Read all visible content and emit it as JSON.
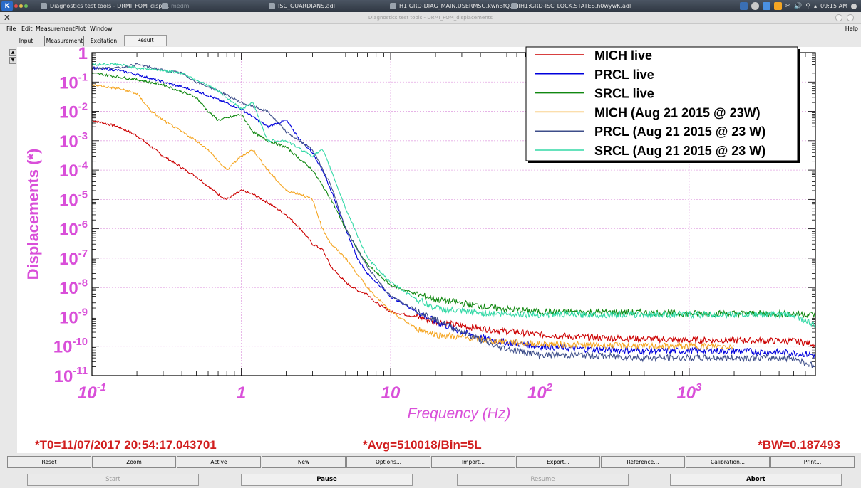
{
  "taskbar": {
    "launcher": "K",
    "tasks": [
      "Diagnostics test tools - DRMI_FOM_displ...",
      "medm",
      "ISC_GUARDIANS.adl",
      "H1:GRD-DIAG_MAIN.USERMSG.kwnBfQ.adl",
      "H1:GRD-ISC_LOCK.STATES.h0wywK.adl"
    ],
    "clock": "09:15 AM"
  },
  "window": {
    "title": "Diagnostics test tools - DRMI_FOM_displacements",
    "close": "X"
  },
  "menu": {
    "file": "File",
    "edit": "Edit",
    "measurement": "Measurement",
    "plot": "Plot",
    "window": "Window",
    "help": "Help"
  },
  "tabs": {
    "input": "Input",
    "measurement": "Measurement",
    "excitation": "Excitation",
    "result": "Result"
  },
  "spinner": {
    "up": "▲",
    "down": "▼"
  },
  "status": {
    "t0": "*T0=11/07/2017 20:54:17.043701",
    "avg": "*Avg=510018/Bin=5L",
    "bw": "*BW=0.187493"
  },
  "colors": {
    "axis": "#d94fd9",
    "status": "#d11e1e",
    "grid": "#e3a8e3"
  },
  "buttons_row1": [
    "Reset",
    "Zoom",
    "Active",
    "New",
    "Options...",
    "Import...",
    "Export...",
    "Reference...",
    "Calibration...",
    "Print..."
  ],
  "buttons_row2": {
    "start": "Start",
    "pause": "Pause",
    "resume": "Resume",
    "abort": "Abort"
  },
  "chart_data": {
    "type": "line",
    "xlabel": "Frequency (Hz)",
    "ylabel": "Displacements (*)",
    "xscale": "log",
    "yscale": "log",
    "xlim": [
      0.1,
      7000
    ],
    "ylim": [
      1e-11,
      1
    ],
    "grid": true,
    "legend_position": "top-right",
    "x_ticks": [
      {
        "b": "10",
        "e": "-1"
      },
      {
        "b": "1",
        "e": ""
      },
      {
        "b": "10",
        "e": ""
      },
      {
        "b": "10",
        "e": "2"
      },
      {
        "b": "10",
        "e": "3"
      }
    ],
    "y_ticks": [
      {
        "b": "1",
        "e": ""
      },
      {
        "b": "10",
        "e": "-1"
      },
      {
        "b": "10",
        "e": "-2"
      },
      {
        "b": "10",
        "e": "-3"
      },
      {
        "b": "10",
        "e": "-4"
      },
      {
        "b": "10",
        "e": "-5"
      },
      {
        "b": "10",
        "e": "-6"
      },
      {
        "b": "10",
        "e": "-7"
      },
      {
        "b": "10",
        "e": "-8"
      },
      {
        "b": "10",
        "e": "-9"
      },
      {
        "b": "10",
        "e": "-10"
      },
      {
        "b": "10",
        "e": "-11"
      }
    ],
    "series": [
      {
        "name": "MICH live",
        "color": "#cc0000",
        "x": [
          0.1,
          0.15,
          0.2,
          0.3,
          0.5,
          0.7,
          0.8,
          1.0,
          1.2,
          1.5,
          2.0,
          2.5,
          3.0,
          3.5,
          4.0,
          5.0,
          6.0,
          7.0,
          8.0,
          10,
          15,
          20,
          30,
          50,
          100,
          200,
          500,
          1000,
          2000,
          5000,
          7000
        ],
        "y": [
          0.005,
          0.003,
          0.0015,
          0.0003,
          6e-05,
          1.5e-05,
          1e-05,
          2e-05,
          1.5e-05,
          8e-06,
          3e-06,
          1e-06,
          3e-07,
          2e-07,
          5e-08,
          1.5e-08,
          8e-09,
          6e-09,
          3e-09,
          1.5e-09,
          1e-09,
          7e-10,
          5e-10,
          3.5e-10,
          2.5e-10,
          2e-10,
          1.8e-10,
          1.6e-10,
          1.6e-10,
          1.5e-10,
          1.2e-10
        ]
      },
      {
        "name": "PRCL live",
        "color": "#0000dd",
        "x": [
          0.1,
          0.15,
          0.2,
          0.3,
          0.5,
          0.7,
          1.0,
          1.5,
          2.0,
          2.5,
          3.0,
          3.5,
          4.0,
          5.0,
          6.0,
          7.0,
          10,
          15,
          20,
          30,
          50,
          100,
          200,
          500,
          1000,
          2000,
          5000,
          7000
        ],
        "y": [
          0.3,
          0.25,
          0.18,
          0.1,
          0.05,
          0.025,
          0.012,
          0.003,
          0.005,
          0.001,
          0.0004,
          0.0001,
          2e-05,
          1e-06,
          1e-07,
          3e-08,
          5e-09,
          1.5e-09,
          7e-10,
          3e-10,
          1.5e-10,
          1e-10,
          8e-11,
          7e-11,
          7e-11,
          7e-11,
          6e-11,
          5e-11
        ]
      },
      {
        "name": "SRCL live",
        "color": "#118811",
        "x": [
          0.1,
          0.15,
          0.2,
          0.3,
          0.5,
          0.6,
          0.7,
          1.0,
          1.2,
          1.5,
          2.0,
          3.0,
          4.0,
          5.0,
          6.0,
          7.0,
          10,
          15,
          20,
          50,
          100,
          500,
          1000,
          5000,
          7000
        ],
        "y": [
          0.2,
          0.15,
          0.12,
          0.08,
          0.03,
          0.01,
          0.005,
          0.008,
          0.002,
          0.001,
          0.0006,
          0.0001,
          1e-05,
          1e-06,
          2e-07,
          6e-08,
          1.2e-08,
          6e-09,
          4e-09,
          2e-09,
          1.5e-09,
          1.4e-09,
          1.3e-09,
          1.3e-09,
          1.2e-09
        ]
      },
      {
        "name": "MICH (Aug 21 2015 @ 23W)",
        "color": "#f5a623",
        "x": [
          0.1,
          0.15,
          0.2,
          0.25,
          0.3,
          0.5,
          0.6,
          0.7,
          0.8,
          1.0,
          1.2,
          1.5,
          2.0,
          2.5,
          3.0,
          3.5,
          4.0,
          5.0,
          7.0,
          10,
          15,
          20,
          30,
          50,
          100,
          200,
          500,
          1000,
          2000
        ],
        "y": [
          0.08,
          0.06,
          0.04,
          0.01,
          0.005,
          0.001,
          0.0005,
          0.0002,
          0.0001,
          0.0003,
          0.0005,
          0.0001,
          2e-05,
          1.5e-05,
          1e-05,
          1e-06,
          3e-07,
          1e-07,
          1e-08,
          1.5e-09,
          4e-10,
          2.5e-10,
          2e-10,
          1.5e-10,
          1.2e-10,
          1.1e-10,
          1e-10,
          1e-10,
          1e-10
        ]
      },
      {
        "name": "PRCL (Aug 21 2015 @ 23 W)",
        "color": "#3e4e8a",
        "x": [
          0.1,
          0.15,
          0.2,
          0.3,
          0.4,
          0.5,
          0.7,
          1.0,
          1.5,
          2.0,
          3.0,
          4.0,
          5.0,
          7.0,
          10,
          20,
          50,
          100,
          200,
          500,
          1000,
          2000,
          5000,
          7000
        ],
        "y": [
          0.3,
          0.3,
          0.4,
          0.25,
          0.2,
          0.1,
          0.05,
          0.02,
          0.01,
          0.002,
          0.0005,
          3e-05,
          1e-06,
          5e-08,
          5e-09,
          8e-10,
          1e-10,
          5e-11,
          5e-11,
          4e-11,
          4e-11,
          4e-11,
          4e-11,
          2e-11
        ]
      },
      {
        "name": "SRCL (Aug 21 2015 @ 23 W)",
        "color": "#33d9a6",
        "x": [
          0.1,
          0.15,
          0.2,
          0.3,
          0.4,
          0.5,
          0.7,
          1.0,
          1.2,
          1.5,
          2.0,
          3.0,
          3.5,
          4.0,
          5.0,
          7.0,
          10,
          15,
          20,
          30,
          50,
          100,
          200,
          500,
          1000,
          2000,
          5000,
          7000
        ],
        "y": [
          0.4,
          0.4,
          0.3,
          0.25,
          0.2,
          0.12,
          0.05,
          0.012,
          0.02,
          0.001,
          0.001,
          0.0003,
          0.0005,
          0.0001,
          5e-06,
          1e-07,
          1.5e-08,
          4e-09,
          2e-09,
          1.5e-09,
          1.3e-09,
          1.2e-09,
          1.2e-09,
          1.2e-09,
          1.2e-09,
          1.2e-09,
          1.2e-09,
          5e-10
        ]
      }
    ]
  }
}
